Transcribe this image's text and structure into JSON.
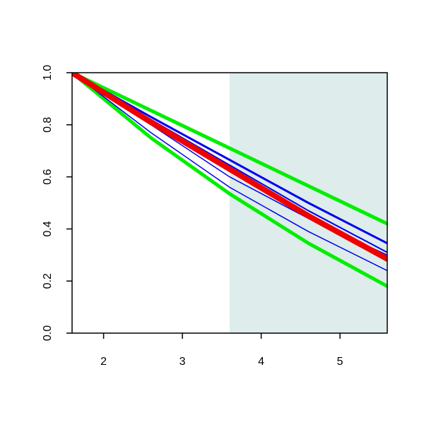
{
  "chart_data": {
    "type": "line",
    "x": [
      1.6,
      2.6,
      3.6,
      4.6,
      5.6
    ],
    "xlim": [
      1.6,
      5.6
    ],
    "xticks": [
      2,
      3,
      4,
      5
    ],
    "ylim": [
      0,
      1
    ],
    "yticks": [
      {
        "value": 0,
        "label": "0.0"
      },
      0.2,
      0.4,
      0.6,
      0.8,
      {
        "value": 1,
        "label": "1.0"
      }
    ],
    "shade": {
      "xlim": [
        3.6,
        5.6
      ],
      "color": "#deecec"
    },
    "series": [
      {
        "color": "#00ee00",
        "width": 5,
        "values": [
          1,
          0.855,
          0.71,
          0.565,
          0.42
        ]
      },
      {
        "color": "#00ee00",
        "width": 5,
        "values": [
          1,
          0.75,
          0.535,
          0.345,
          0.18
        ]
      },
      {
        "color": "#0000ee",
        "width": 3,
        "values": [
          1,
          0.83,
          0.665,
          0.5,
          0.345
        ]
      },
      {
        "color": "#0000ee",
        "width": 2,
        "values": [
          1,
          0.82,
          0.645,
          0.47,
          0.31
        ]
      },
      {
        "color": "#0000ee",
        "width": 1.5,
        "values": [
          1,
          0.8,
          0.6,
          0.44,
          0.3
        ]
      },
      {
        "color": "#0000ee",
        "width": 1.5,
        "values": [
          1,
          0.77,
          0.56,
          0.39,
          0.24
        ]
      },
      {
        "color": "#ee0000",
        "width": 8,
        "values": [
          1,
          0.81,
          0.63,
          0.45,
          0.285
        ]
      }
    ]
  }
}
